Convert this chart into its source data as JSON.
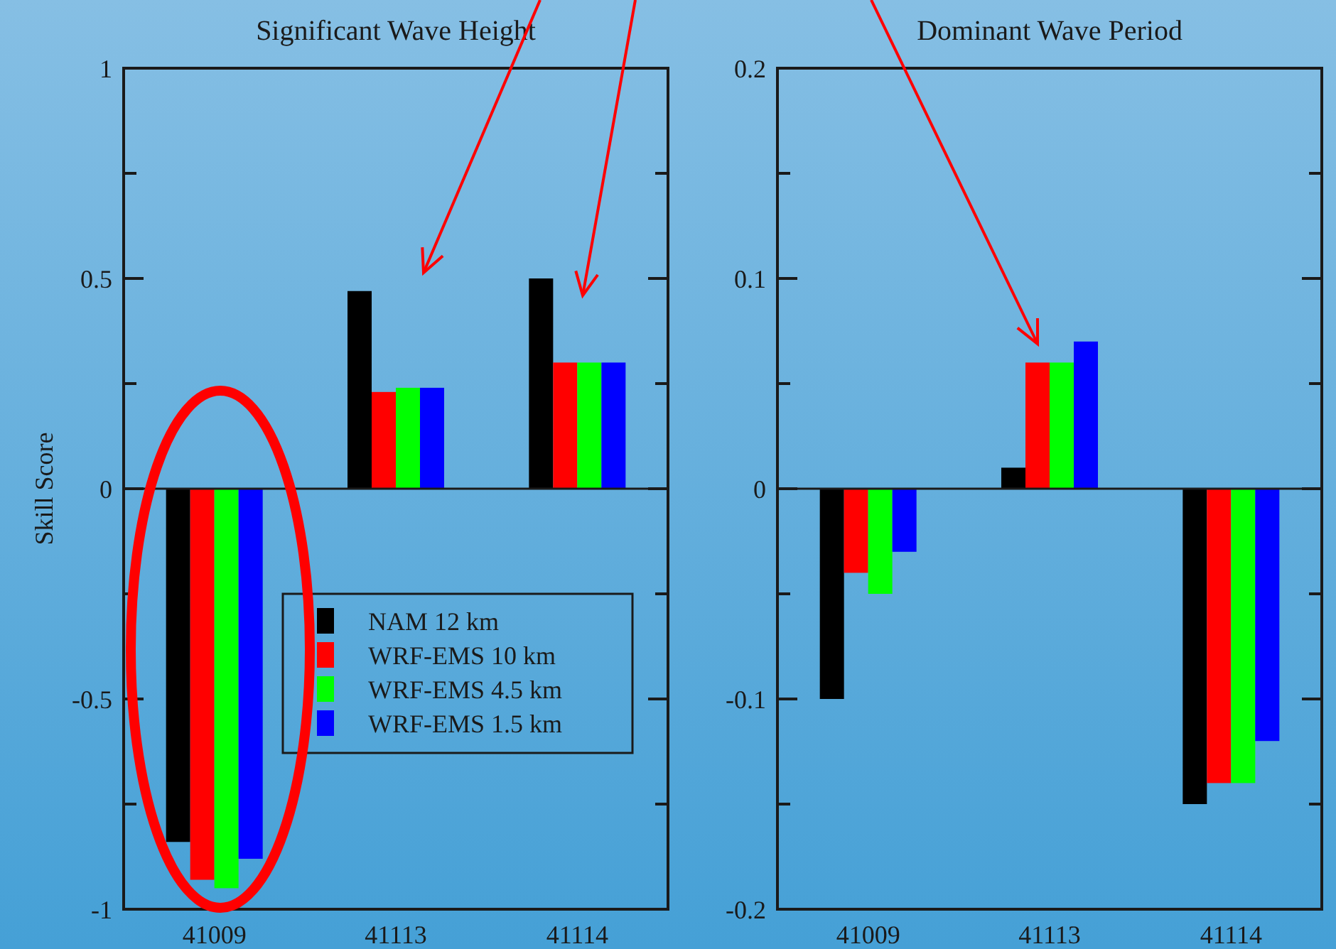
{
  "chart_data": [
    {
      "type": "bar",
      "title": "Significant Wave Height",
      "ylabel": "Skill Score",
      "categories": [
        "41009",
        "41113",
        "41114"
      ],
      "series": [
        {
          "name": "NAM 12 km",
          "color": "#000000",
          "values": [
            -0.84,
            0.47,
            0.5
          ]
        },
        {
          "name": "WRF-EMS 10 km",
          "color": "#ff0000",
          "values": [
            -0.93,
            0.23,
            0.3
          ]
        },
        {
          "name": "WRF-EMS 4.5 km",
          "color": "#00ff00",
          "values": [
            -0.95,
            0.24,
            0.3
          ]
        },
        {
          "name": "WRF-EMS 1.5 km",
          "color": "#0000ff",
          "values": [
            -0.88,
            0.24,
            0.3
          ]
        }
      ],
      "ylim": [
        -1,
        1
      ],
      "yticks": [
        -1,
        {
          "value": -0.75,
          "label": null
        },
        -0.5,
        {
          "value": -0.25,
          "label": null
        },
        0,
        {
          "value": 0.25,
          "label": null
        },
        0.5,
        {
          "value": 0.75,
          "label": null
        },
        1
      ],
      "legend": "bottom right"
    },
    {
      "type": "bar",
      "title": "Dominant Wave Period",
      "categories": [
        "41009",
        "41113",
        "41114"
      ],
      "series": [
        {
          "color": "#000000",
          "values": [
            -0.1,
            0.01,
            -0.15
          ]
        },
        {
          "color": "#ff0000",
          "values": [
            -0.04,
            0.06,
            -0.14
          ]
        },
        {
          "color": "#00ff00",
          "values": [
            -0.05,
            0.06,
            -0.14
          ]
        },
        {
          "color": "#0000ff",
          "values": [
            -0.03,
            0.07,
            -0.12
          ]
        }
      ],
      "ylim": [
        -0.2,
        0.2
      ],
      "yticks": [
        -0.2,
        {
          "value": -0.15,
          "label": null
        },
        -0.1,
        {
          "value": -0.05,
          "label": null
        },
        0,
        {
          "value": 0.05,
          "label": null
        },
        0.1,
        {
          "value": 0.15,
          "label": null
        },
        0.2
      ]
    }
  ]
}
